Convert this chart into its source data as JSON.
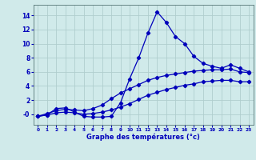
{
  "xlabel": "Graphe des températures (°c)",
  "bg_color": "#d0eaea",
  "grid_color": "#b0cece",
  "line_color": "#0000bb",
  "x_ticks": [
    0,
    1,
    2,
    3,
    4,
    5,
    6,
    7,
    8,
    9,
    10,
    11,
    12,
    13,
    14,
    15,
    16,
    17,
    18,
    19,
    20,
    21,
    22,
    23
  ],
  "y_ticks": [
    0,
    2,
    4,
    6,
    8,
    10,
    12,
    14
  ],
  "y_tick_labels": [
    "-0",
    "2",
    "4",
    "6",
    "8",
    "10",
    "12",
    "14"
  ],
  "ylim": [
    -1.5,
    15.5
  ],
  "xlim": [
    -0.5,
    23.5
  ],
  "main_data": [
    -0.3,
    -0.1,
    0.8,
    0.9,
    0.3,
    -0.3,
    -0.4,
    -0.4,
    -0.3,
    1.6,
    5.0,
    8.0,
    11.5,
    14.5,
    13.0,
    11.0,
    10.0,
    8.2,
    7.2,
    6.8,
    6.5,
    7.0,
    6.5,
    6.0
  ],
  "upper_envelope": [
    -0.3,
    0.1,
    0.5,
    0.7,
    0.6,
    0.5,
    0.8,
    1.3,
    2.2,
    3.0,
    3.6,
    4.2,
    4.8,
    5.2,
    5.5,
    5.7,
    5.9,
    6.1,
    6.2,
    6.3,
    6.3,
    6.4,
    6.0,
    5.9
  ],
  "lower_envelope": [
    -0.3,
    -0.1,
    0.2,
    0.3,
    0.2,
    0.0,
    0.1,
    0.3,
    0.6,
    1.0,
    1.5,
    2.1,
    2.7,
    3.1,
    3.5,
    3.8,
    4.1,
    4.3,
    4.6,
    4.7,
    4.8,
    4.8,
    4.6,
    4.6
  ]
}
